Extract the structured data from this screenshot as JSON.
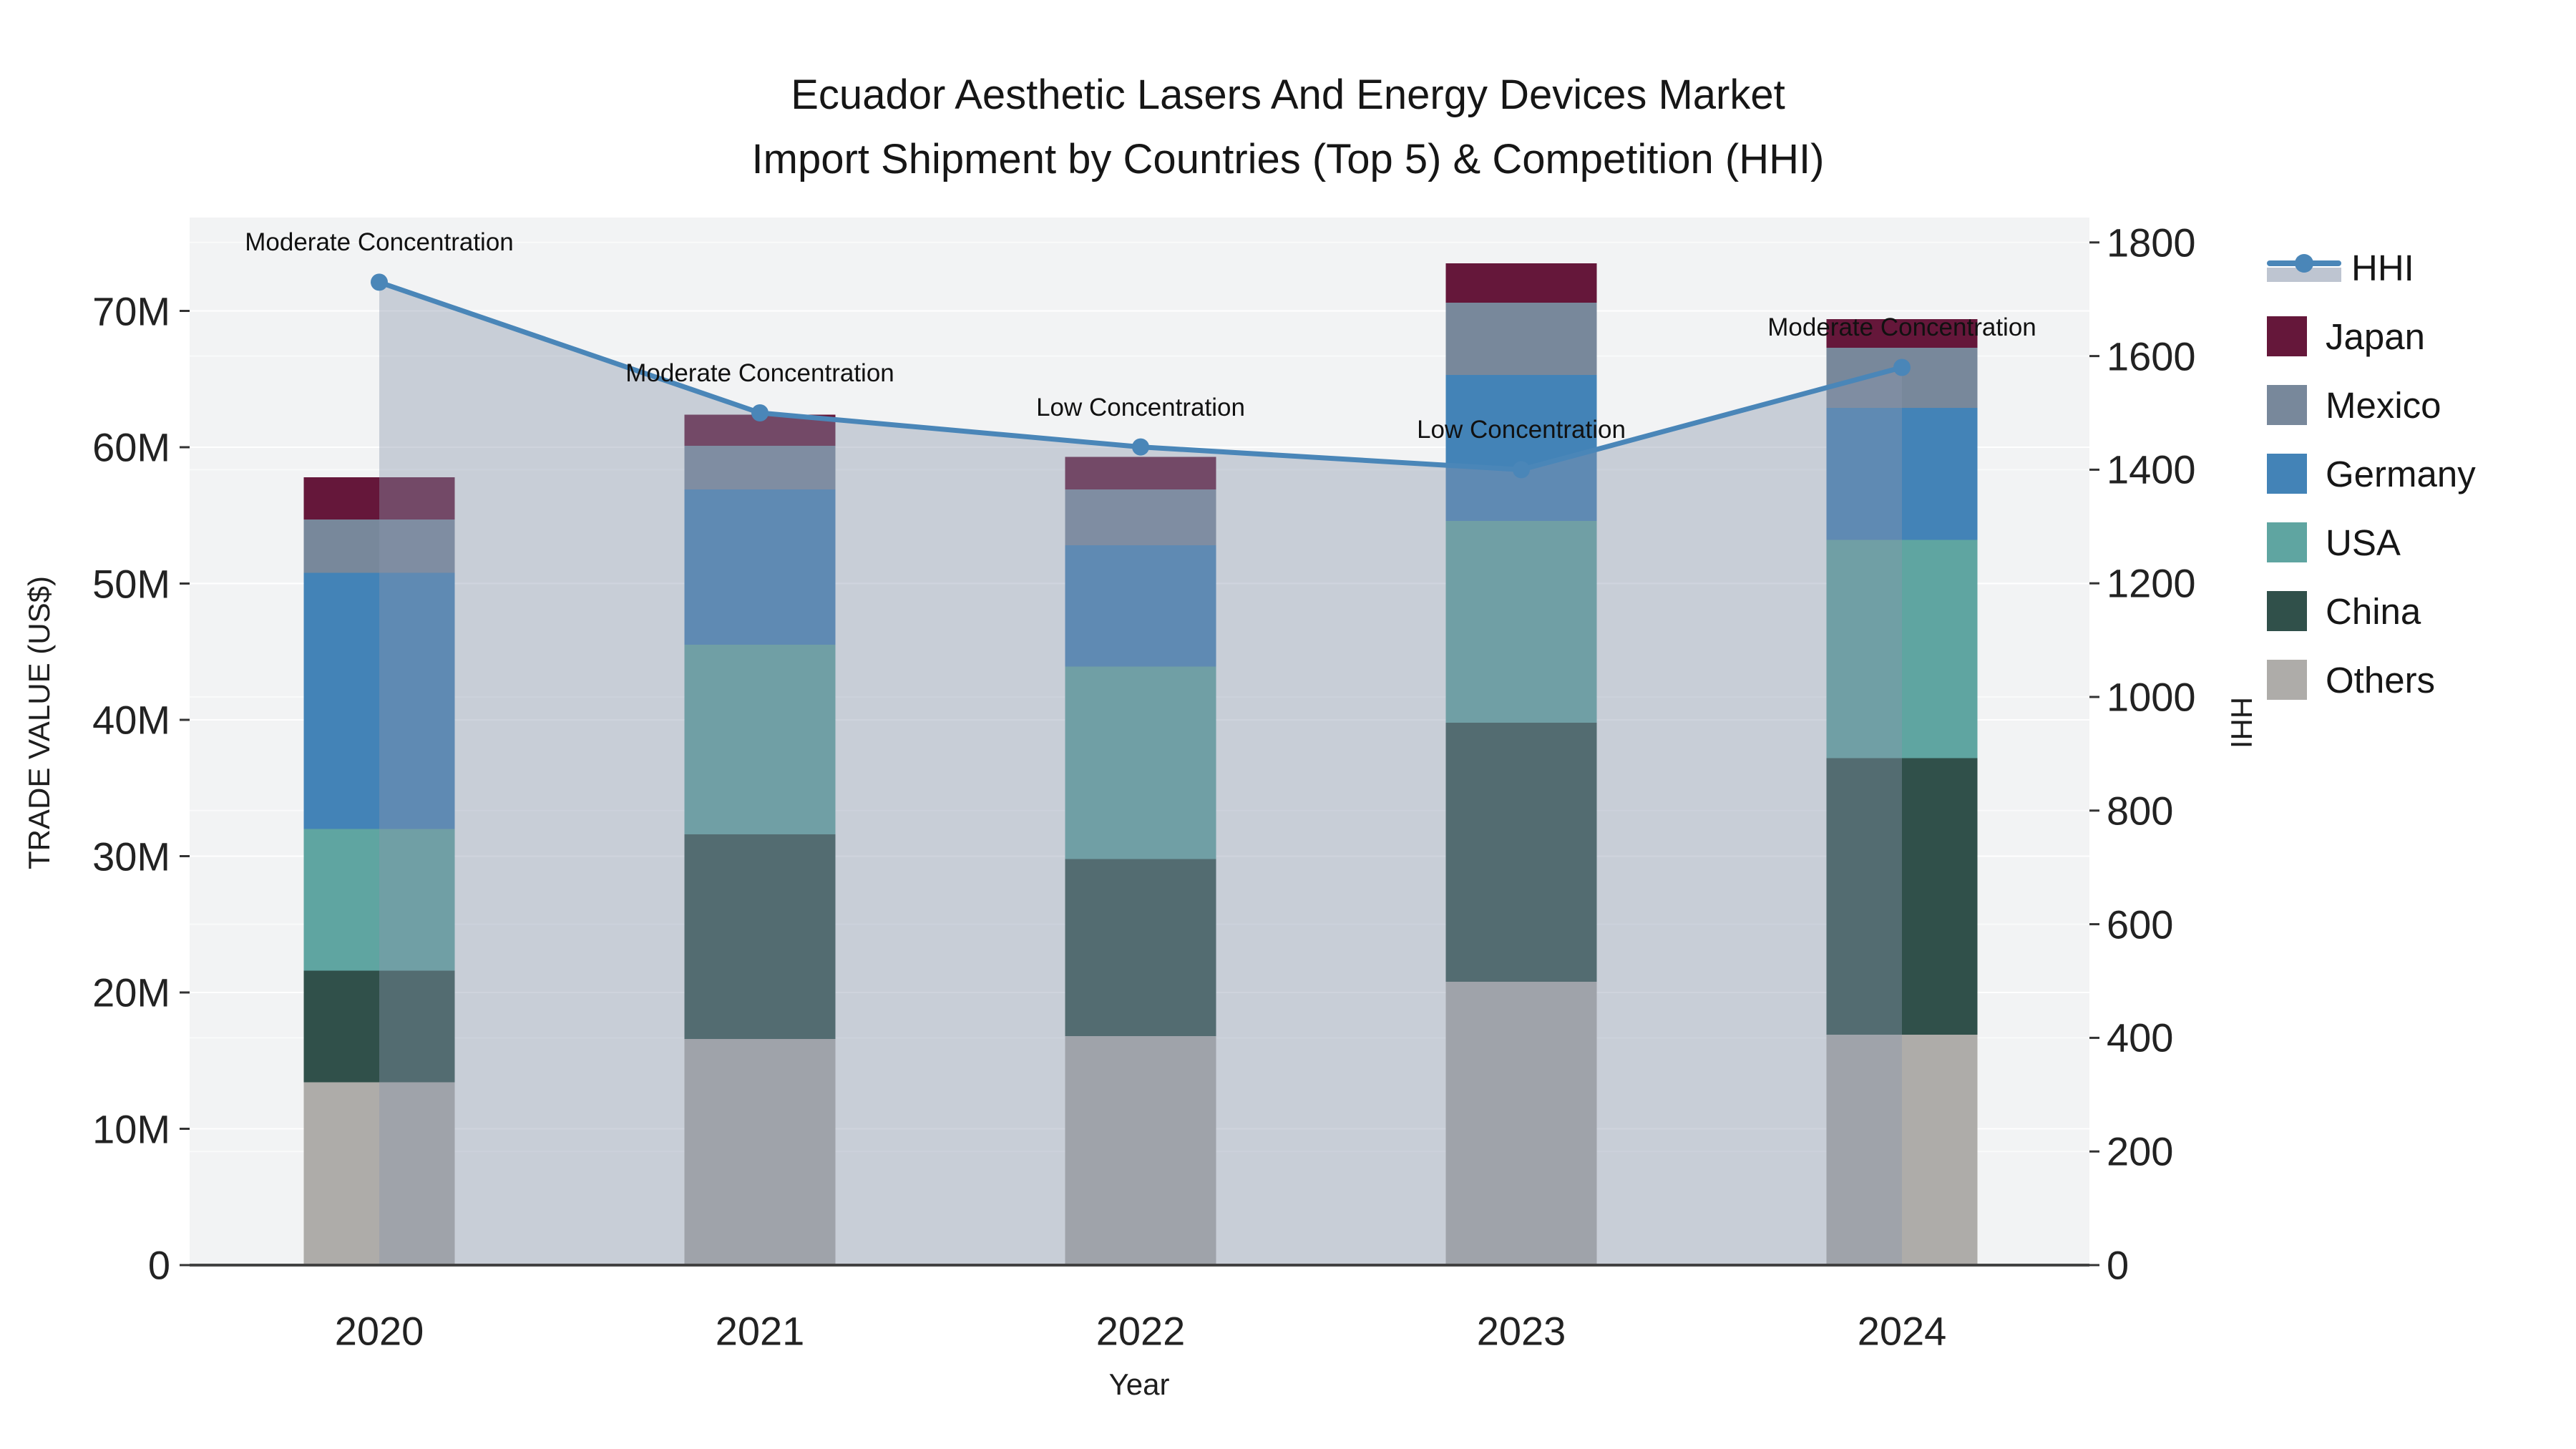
{
  "title": {
    "line1": "Ecuador Aesthetic Lasers And Energy Devices Market",
    "line2": "Import Shipment by Countries (Top 5) & Competition (HHI)"
  },
  "axes": {
    "x_title": "Year",
    "y_left_title": "TRADE VALUE (US$)",
    "y_right_title": "HHI",
    "x_ticks": [
      "2020",
      "2021",
      "2022",
      "2023",
      "2024"
    ],
    "y_left_ticks": [
      "0",
      "10M",
      "20M",
      "30M",
      "40M",
      "50M",
      "60M",
      "70M"
    ],
    "y_left_tick_values": [
      0,
      10,
      20,
      30,
      40,
      50,
      60,
      70
    ],
    "y_right_ticks": [
      "0",
      "200",
      "400",
      "600",
      "800",
      "1000",
      "1200",
      "1400",
      "1600",
      "1800"
    ],
    "y_right_tick_values": [
      0,
      200,
      400,
      600,
      800,
      1000,
      1200,
      1400,
      1600,
      1800
    ]
  },
  "chart_data": {
    "type": "composite",
    "subtype": "stacked-bar-with-line",
    "categories": [
      2020,
      2021,
      2022,
      2023,
      2024
    ],
    "bar_value_unit": "M US$",
    "ylim_left": [
      0,
      77
    ],
    "ylim_right": [
      0,
      1845
    ],
    "grid": true,
    "legend_position": "right",
    "series": [
      {
        "name": "Others",
        "color": "#aeaca9",
        "values": [
          13.4,
          16.6,
          16.8,
          20.8,
          16.9
        ]
      },
      {
        "name": "China",
        "color": "#30504a",
        "values": [
          8.2,
          15.0,
          13.0,
          19.0,
          20.3
        ]
      },
      {
        "name": "USA",
        "color": "#5fa5a1",
        "values": [
          10.4,
          13.9,
          14.1,
          14.8,
          16.0
        ]
      },
      {
        "name": "Germany",
        "color": "#4383b7",
        "values": [
          18.8,
          11.4,
          8.9,
          10.7,
          9.7
        ]
      },
      {
        "name": "Mexico",
        "color": "#78889b",
        "values": [
          3.9,
          3.2,
          4.1,
          5.3,
          4.4
        ]
      },
      {
        "name": "Japan",
        "color": "#65173a",
        "values": [
          3.1,
          2.3,
          2.4,
          2.9,
          2.1
        ]
      }
    ],
    "line": {
      "name": "HHI",
      "color": "#4a86b8",
      "area_fill": "rgba(137,149,172,0.40)",
      "values": [
        1730,
        1500,
        1440,
        1400,
        1580
      ]
    },
    "annotations": [
      {
        "x": 2020,
        "text": "Moderate Concentration"
      },
      {
        "x": 2021,
        "text": "Moderate Concentration"
      },
      {
        "x": 2022,
        "text": "Low Concentration"
      },
      {
        "x": 2023,
        "text": "Low Concentration"
      },
      {
        "x": 2024,
        "text": "Moderate Concentration"
      }
    ]
  },
  "legend": {
    "items": [
      {
        "label": "HHI"
      },
      {
        "label": "Japan"
      },
      {
        "label": "Mexico"
      },
      {
        "label": "Germany"
      },
      {
        "label": "USA"
      },
      {
        "label": "China"
      },
      {
        "label": "Others"
      }
    ]
  },
  "colors": {
    "plot_background": "#f2f3f4",
    "gridline": "#ffffff",
    "axis_line": "#424242",
    "hhi_line": "#4a86b8",
    "hhi_area": "rgba(137,149,172,0.40)"
  }
}
